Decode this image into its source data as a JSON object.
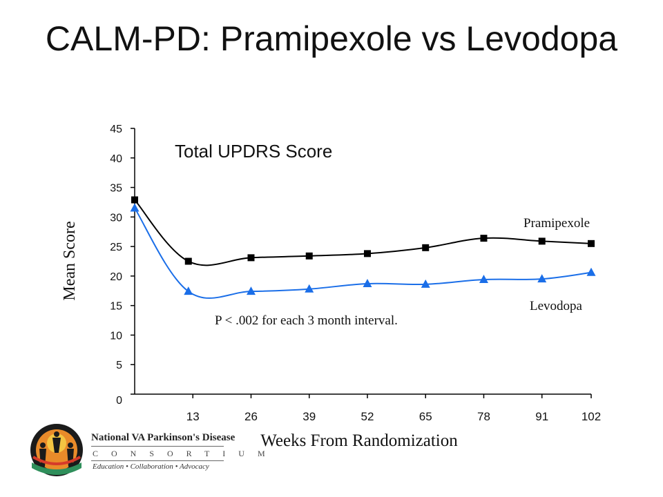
{
  "slide": {
    "title": "CALM-PD: Pramipexole vs Levodopa"
  },
  "logo": {
    "line1": "National VA Parkinson's Disease",
    "line2": "CONSORTIUM",
    "line3": "Education • Collaboration • Advocacy"
  },
  "chart_data": {
    "type": "line",
    "title": "Total UPDRS Score",
    "xlabel": "Weeks From Randomization",
    "ylabel": "Mean Score",
    "annotation": "P < .002 for each 3 month interval.",
    "ylim": [
      0,
      45
    ],
    "xlim": [
      0,
      102
    ],
    "yticks": [
      0,
      5,
      10,
      15,
      20,
      25,
      30,
      35,
      40,
      45
    ],
    "xticks": [
      13,
      26,
      39,
      52,
      65,
      78,
      91,
      102
    ],
    "legend_placement": "right",
    "grid": false,
    "series": [
      {
        "name": "Pramipexole",
        "color": "#000000",
        "marker": "square",
        "x": [
          0,
          12,
          26,
          39,
          52,
          65,
          78,
          91,
          102
        ],
        "y": [
          32.9,
          22.5,
          23.1,
          23.4,
          23.8,
          24.8,
          26.4,
          25.9,
          25.5
        ]
      },
      {
        "name": "Levodopa",
        "color": "#1a6ee8",
        "marker": "triangle",
        "x": [
          0,
          12,
          26,
          39,
          52,
          65,
          78,
          91,
          102
        ],
        "y": [
          31.5,
          17.4,
          17.4,
          17.8,
          18.7,
          18.6,
          19.4,
          19.5,
          20.6
        ]
      }
    ]
  }
}
